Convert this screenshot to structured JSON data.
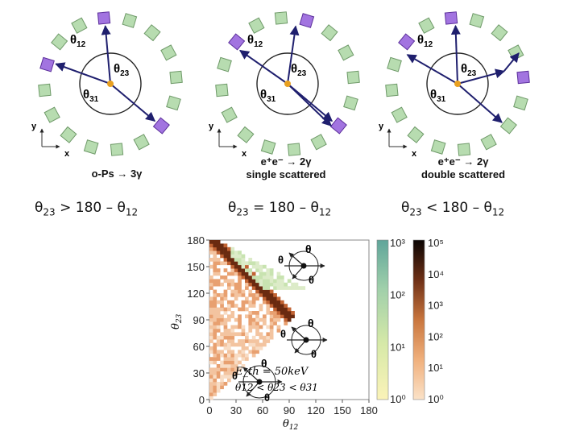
{
  "panels": [
    {
      "caption_line1": "o-Ps → 3γ",
      "caption_line2": "",
      "angle_labels": [
        "θ12",
        "θ23",
        "θ31"
      ],
      "condition": {
        "lhs": "θ",
        "lhs_sub": "23",
        "op": ">",
        "rhs": "180 – θ",
        "rhs_sub": "12"
      }
    },
    {
      "caption_line1": "e⁺e⁻ → 2γ",
      "caption_line2": "single scattered",
      "angle_labels": [
        "θ12",
        "θ23",
        "θ31"
      ],
      "condition": {
        "lhs": "θ",
        "lhs_sub": "23",
        "op": "=",
        "rhs": "180 – θ",
        "rhs_sub": "12"
      }
    },
    {
      "caption_line1": "e⁺e⁻ → 2γ",
      "caption_line2": "double scattered",
      "angle_labels": [
        "θ12",
        "θ23",
        "θ31"
      ],
      "condition": {
        "lhs": "θ",
        "lhs_sub": "23",
        "op": "<",
        "rhs": "180 – θ",
        "rhs_sub": "12"
      }
    }
  ],
  "axis_labels": {
    "y": "y",
    "x": "x"
  },
  "colors": {
    "detector": "#b7dcb0",
    "detector_edge": "#6f9a69",
    "hit": "#a274e0",
    "hit_edge": "#5b2f9a",
    "arrow": "#1f1f6e",
    "source": "#e8a020"
  },
  "chart_data": {
    "type": "heatmap",
    "xlabel": "θ12",
    "ylabel": "θ23",
    "xlim": [
      0,
      180
    ],
    "ylim": [
      0,
      180
    ],
    "xticks": [
      0,
      30,
      60,
      90,
      120,
      150,
      180
    ],
    "yticks": [
      0,
      30,
      60,
      90,
      120,
      150,
      180
    ],
    "colorbar_green": {
      "ticks": [
        "10³",
        "10²",
        "10¹",
        "10⁰"
      ]
    },
    "colorbar_orange": {
      "ticks": [
        "10⁵",
        "10⁴",
        "10³",
        "10²",
        "10¹",
        "10⁰"
      ]
    },
    "annotations": {
      "energy_threshold": "E_th = 50keV",
      "selection": "θ12 < θ23 < θ31"
    }
  }
}
